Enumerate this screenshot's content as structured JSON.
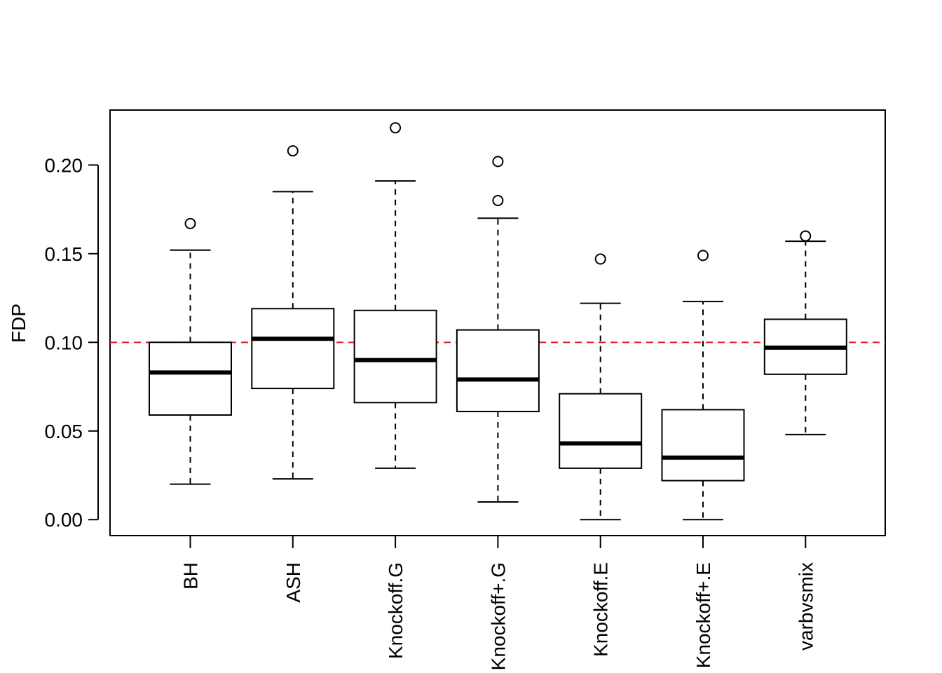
{
  "chart_data": {
    "type": "boxplot",
    "title": "",
    "xlabel": "",
    "ylabel": "FDP",
    "ylim": [
      -0.009,
      0.231
    ],
    "yticks": [
      0.0,
      0.05,
      0.1,
      0.15,
      0.2
    ],
    "ytick_labels": [
      "0.00",
      "0.05",
      "0.10",
      "0.15",
      "0.20"
    ],
    "reference_line": {
      "y": 0.1,
      "color": "#e41a1c",
      "style": "dashed"
    },
    "grid": false,
    "categories": [
      "BH",
      "ASH",
      "Knockoff.G",
      "Knockoff+.G",
      "Knockoff.E",
      "Knockoff+.E",
      "varbvsmix"
    ],
    "boxes": [
      {
        "name": "BH",
        "whisker_low": 0.02,
        "q1": 0.059,
        "median": 0.083,
        "q3": 0.1,
        "whisker_high": 0.152,
        "outliers": [
          0.167
        ]
      },
      {
        "name": "ASH",
        "whisker_low": 0.023,
        "q1": 0.074,
        "median": 0.102,
        "q3": 0.119,
        "whisker_high": 0.185,
        "outliers": [
          0.208
        ]
      },
      {
        "name": "Knockoff.G",
        "whisker_low": 0.029,
        "q1": 0.066,
        "median": 0.09,
        "q3": 0.118,
        "whisker_high": 0.191,
        "outliers": [
          0.221
        ]
      },
      {
        "name": "Knockoff+.G",
        "whisker_low": 0.01,
        "q1": 0.061,
        "median": 0.079,
        "q3": 0.107,
        "whisker_high": 0.17,
        "outliers": [
          0.18,
          0.202
        ]
      },
      {
        "name": "Knockoff.E",
        "whisker_low": 0.0,
        "q1": 0.029,
        "median": 0.043,
        "q3": 0.071,
        "whisker_high": 0.122,
        "outliers": [
          0.147
        ]
      },
      {
        "name": "Knockoff+.E",
        "whisker_low": 0.0,
        "q1": 0.022,
        "median": 0.035,
        "q3": 0.062,
        "whisker_high": 0.123,
        "outliers": [
          0.149
        ]
      },
      {
        "name": "varbvsmix",
        "whisker_low": 0.048,
        "q1": 0.082,
        "median": 0.097,
        "q3": 0.113,
        "whisker_high": 0.157,
        "outliers": [
          0.16
        ]
      }
    ]
  }
}
